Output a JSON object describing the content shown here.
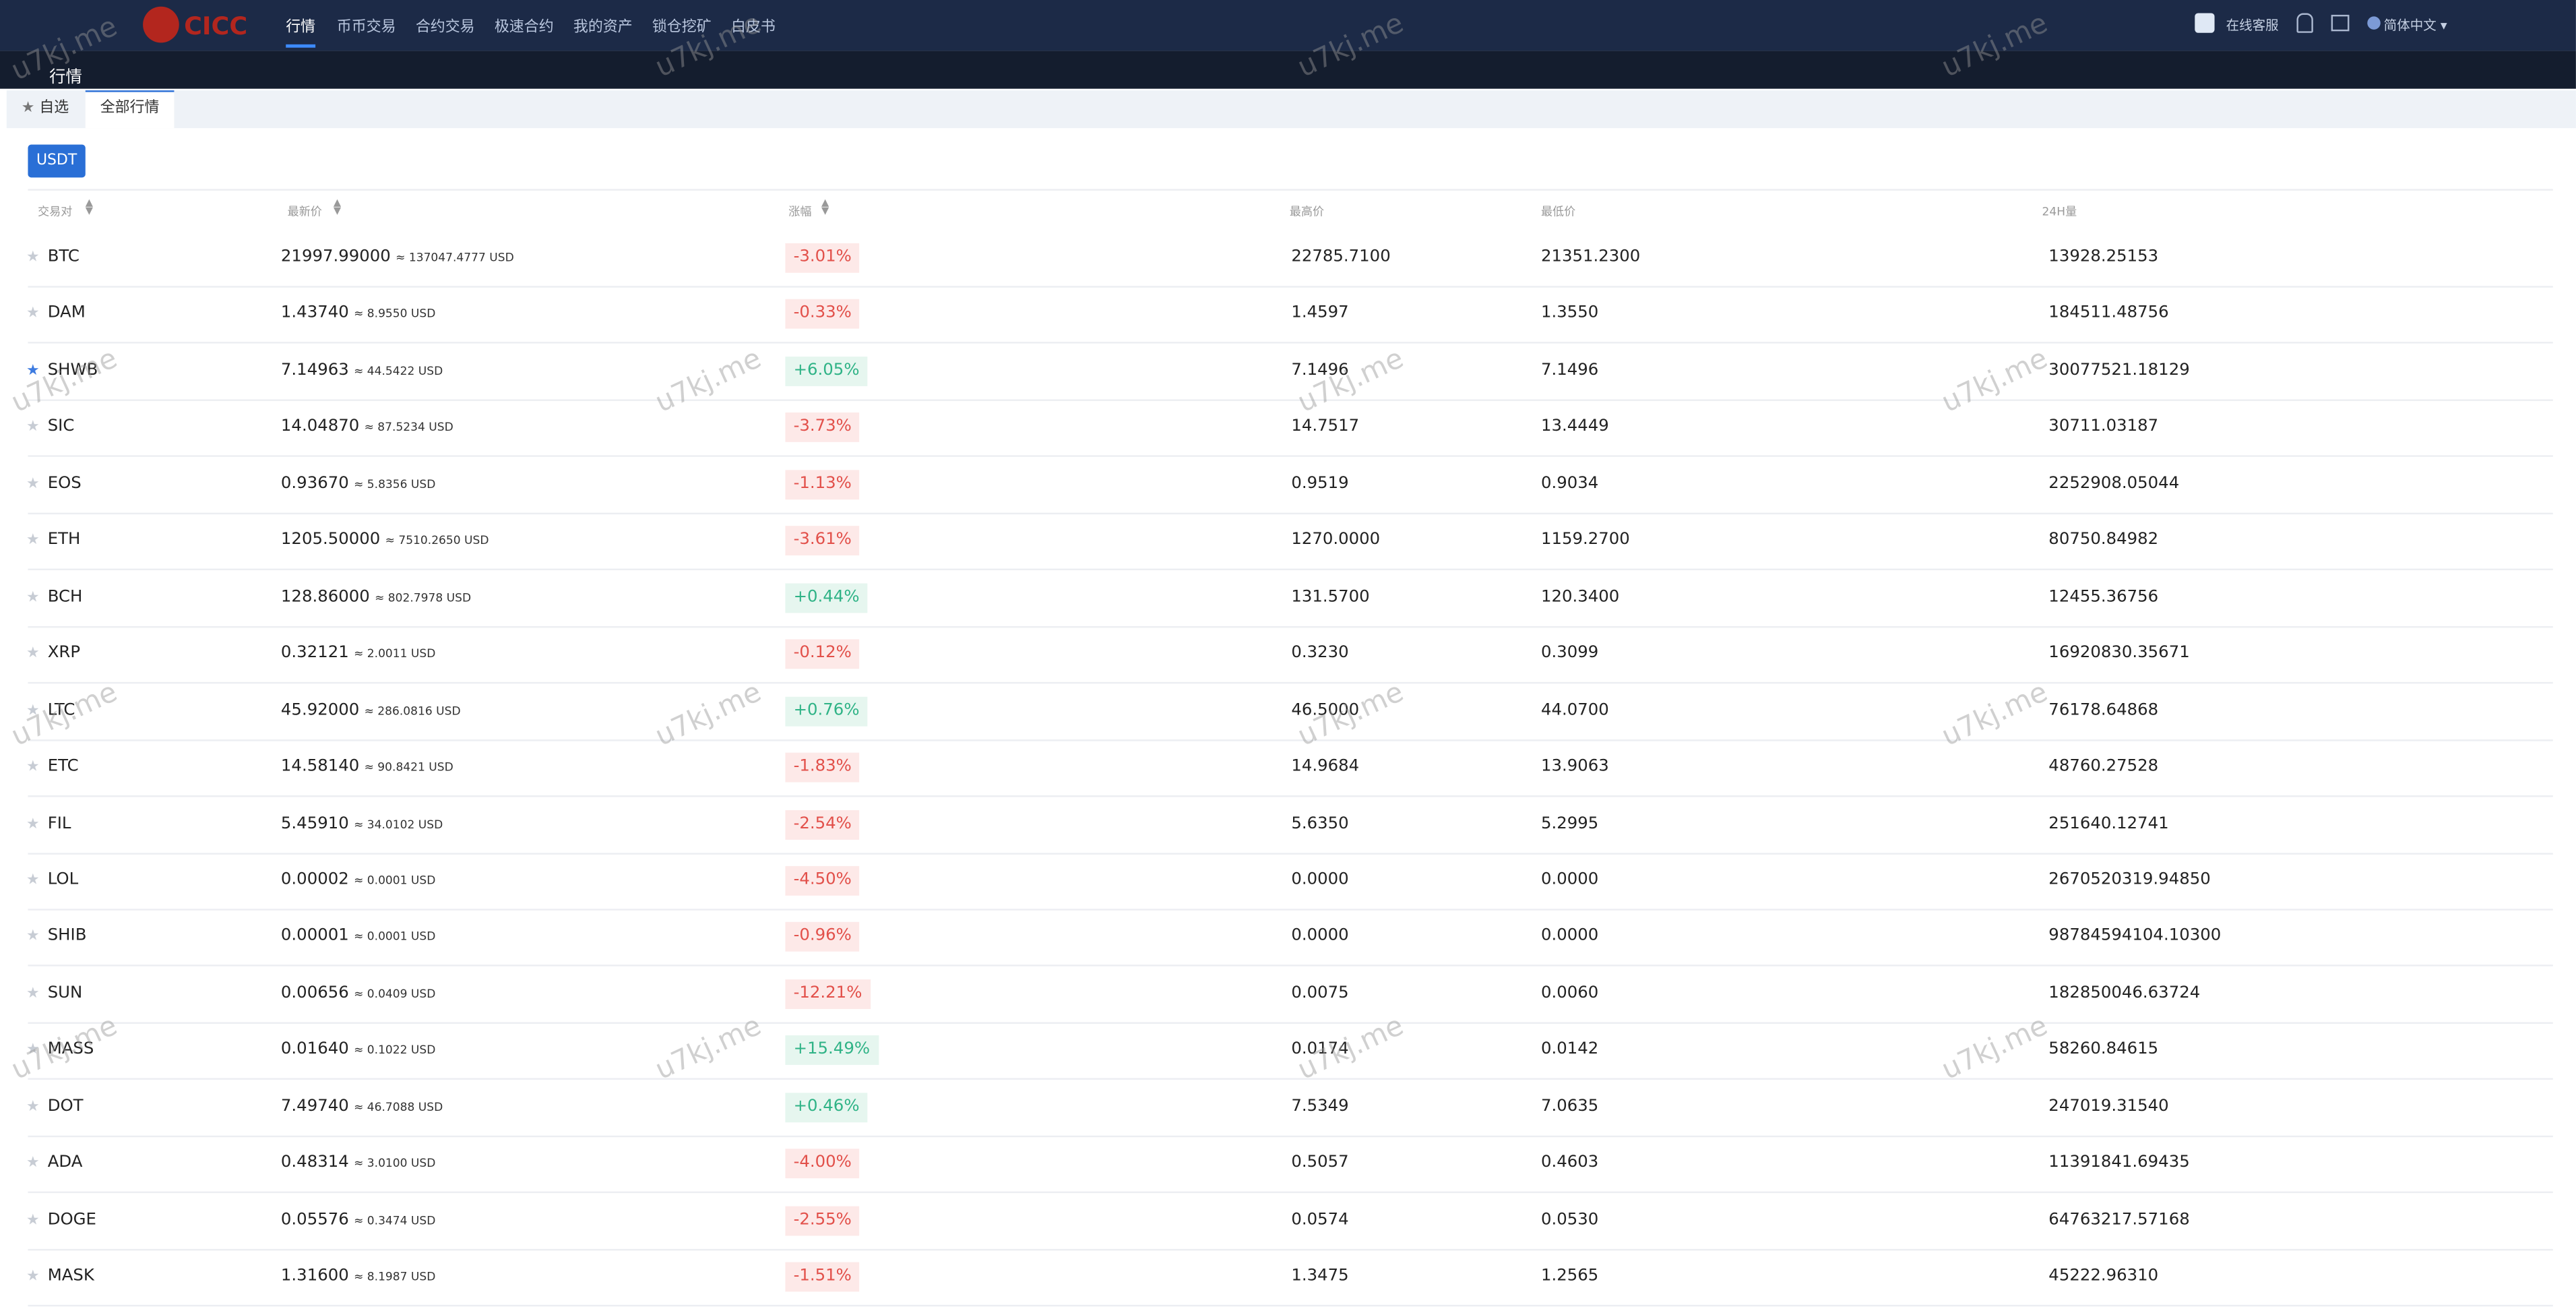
{
  "header": {
    "logo": "CICC",
    "nav": [
      "行情",
      "币币交易",
      "合约交易",
      "极速合约",
      "我的资产",
      "锁仓挖矿",
      "白皮书"
    ],
    "active_nav": 0,
    "support": "在线客服",
    "language": "简体中文"
  },
  "page_title": "行情",
  "tabs": [
    "自选",
    "全部行情"
  ],
  "active_tab": 1,
  "quote_button": "USDT",
  "watermark": "u7kj.me",
  "table": {
    "columns": [
      "交易对",
      "最新价",
      "涨幅",
      "最高价",
      "最低价",
      "24H量"
    ],
    "rows": [
      {
        "pair": "BTC",
        "price": "21997.99000",
        "approx": "≈ 137047.4777 USD",
        "change": "-3.01%",
        "high": "22785.7100",
        "low": "21351.2300",
        "volume": "13928.25153",
        "starred": false
      },
      {
        "pair": "DAM",
        "price": "1.43740",
        "approx": "≈ 8.9550 USD",
        "change": "-0.33%",
        "high": "1.4597",
        "low": "1.3550",
        "volume": "184511.48756",
        "starred": false
      },
      {
        "pair": "SHWB",
        "price": "7.14963",
        "approx": "≈ 44.5422 USD",
        "change": "+6.05%",
        "high": "7.1496",
        "low": "7.1496",
        "volume": "30077521.18129",
        "starred": true
      },
      {
        "pair": "SIC",
        "price": "14.04870",
        "approx": "≈ 87.5234 USD",
        "change": "-3.73%",
        "high": "14.7517",
        "low": "13.4449",
        "volume": "30711.03187",
        "starred": false
      },
      {
        "pair": "EOS",
        "price": "0.93670",
        "approx": "≈ 5.8356 USD",
        "change": "-1.13%",
        "high": "0.9519",
        "low": "0.9034",
        "volume": "2252908.05044",
        "starred": false
      },
      {
        "pair": "ETH",
        "price": "1205.50000",
        "approx": "≈ 7510.2650 USD",
        "change": "-3.61%",
        "high": "1270.0000",
        "low": "1159.2700",
        "volume": "80750.84982",
        "starred": false
      },
      {
        "pair": "BCH",
        "price": "128.86000",
        "approx": "≈ 802.7978 USD",
        "change": "+0.44%",
        "high": "131.5700",
        "low": "120.3400",
        "volume": "12455.36756",
        "starred": false
      },
      {
        "pair": "XRP",
        "price": "0.32121",
        "approx": "≈ 2.0011 USD",
        "change": "-0.12%",
        "high": "0.3230",
        "low": "0.3099",
        "volume": "16920830.35671",
        "starred": false
      },
      {
        "pair": "LTC",
        "price": "45.92000",
        "approx": "≈ 286.0816 USD",
        "change": "+0.76%",
        "high": "46.5000",
        "low": "44.0700",
        "volume": "76178.64868",
        "starred": false
      },
      {
        "pair": "ETC",
        "price": "14.58140",
        "approx": "≈ 90.8421 USD",
        "change": "-1.83%",
        "high": "14.9684",
        "low": "13.9063",
        "volume": "48760.27528",
        "starred": false
      },
      {
        "pair": "FIL",
        "price": "5.45910",
        "approx": "≈ 34.0102 USD",
        "change": "-2.54%",
        "high": "5.6350",
        "low": "5.2995",
        "volume": "251640.12741",
        "starred": false
      },
      {
        "pair": "LOL",
        "price": "0.00002",
        "approx": "≈ 0.0001 USD",
        "change": "-4.50%",
        "high": "0.0000",
        "low": "0.0000",
        "volume": "2670520319.94850",
        "starred": false
      },
      {
        "pair": "SHIB",
        "price": "0.00001",
        "approx": "≈ 0.0001 USD",
        "change": "-0.96%",
        "high": "0.0000",
        "low": "0.0000",
        "volume": "98784594104.10300",
        "starred": false
      },
      {
        "pair": "SUN",
        "price": "0.00656",
        "approx": "≈ 0.0409 USD",
        "change": "-12.21%",
        "high": "0.0075",
        "low": "0.0060",
        "volume": "182850046.63724",
        "starred": false
      },
      {
        "pair": "MASS",
        "price": "0.01640",
        "approx": "≈ 0.1022 USD",
        "change": "+15.49%",
        "high": "0.0174",
        "low": "0.0142",
        "volume": "58260.84615",
        "starred": false
      },
      {
        "pair": "DOT",
        "price": "7.49740",
        "approx": "≈ 46.7088 USD",
        "change": "+0.46%",
        "high": "7.5349",
        "low": "7.0635",
        "volume": "247019.31540",
        "starred": false
      },
      {
        "pair": "ADA",
        "price": "0.48314",
        "approx": "≈ 3.0100 USD",
        "change": "-4.00%",
        "high": "0.5057",
        "low": "0.4603",
        "volume": "11391841.69435",
        "starred": false
      },
      {
        "pair": "DOGE",
        "price": "0.05576",
        "approx": "≈ 0.3474 USD",
        "change": "-2.55%",
        "high": "0.0574",
        "low": "0.0530",
        "volume": "64763217.57168",
        "starred": false
      },
      {
        "pair": "MASK",
        "price": "1.31600",
        "approx": "≈ 8.1987 USD",
        "change": "-1.51%",
        "high": "1.3475",
        "low": "1.2565",
        "volume": "45222.96310",
        "starred": false
      }
    ]
  }
}
